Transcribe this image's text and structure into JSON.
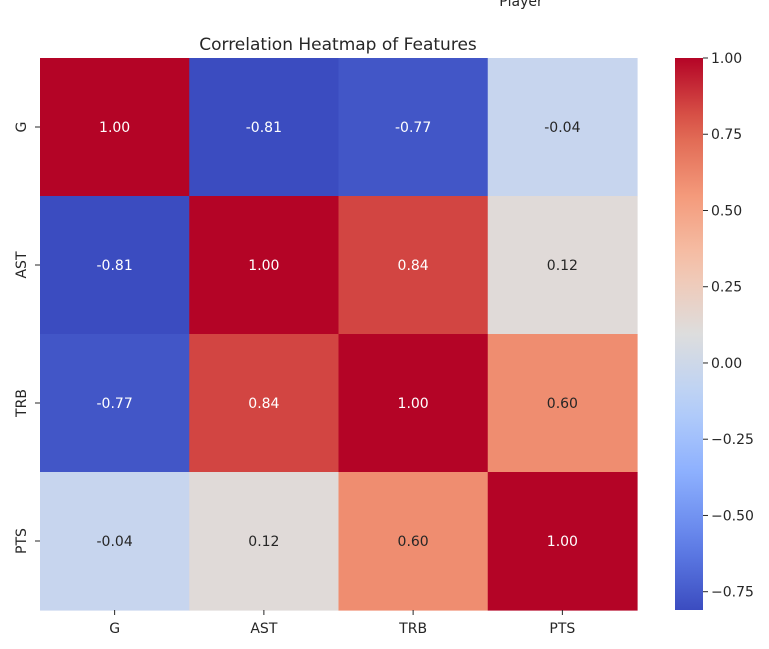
{
  "overflow_label": "Player",
  "chart_data": {
    "type": "heatmap",
    "title": "Correlation Heatmap of Features",
    "x_categories": [
      "G",
      "AST",
      "TRB",
      "PTS"
    ],
    "y_categories": [
      "G",
      "AST",
      "TRB",
      "PTS"
    ],
    "values": [
      [
        1.0,
        -0.81,
        -0.77,
        -0.04
      ],
      [
        -0.81,
        1.0,
        0.84,
        0.12
      ],
      [
        -0.77,
        0.84,
        1.0,
        0.6
      ],
      [
        -0.04,
        0.12,
        0.6,
        1.0
      ]
    ],
    "value_labels": [
      [
        "1.00",
        "-0.81",
        "-0.77",
        "-0.04"
      ],
      [
        "-0.81",
        "1.00",
        "0.84",
        "0.12"
      ],
      [
        "-0.77",
        "0.84",
        "1.00",
        "0.60"
      ],
      [
        "-0.04",
        "0.12",
        "0.60",
        "1.00"
      ]
    ],
    "colormap": "coolwarm",
    "vmin": -0.81,
    "vmax": 1.0,
    "colorbar": {
      "ticks": [
        1.0,
        0.75,
        0.5,
        0.25,
        0.0,
        -0.25,
        -0.5,
        -0.75
      ],
      "tick_labels": [
        "1.00",
        "0.75",
        "0.50",
        "0.25",
        "0.00",
        "−0.25",
        "−0.50",
        "−0.75"
      ]
    }
  }
}
